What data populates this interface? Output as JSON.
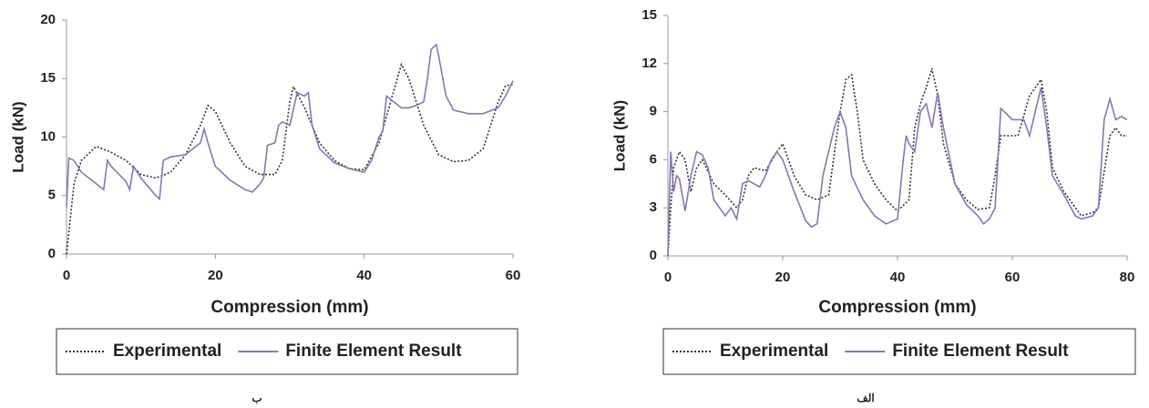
{
  "chart_data": [
    {
      "type": "line",
      "caption": "ب",
      "xlabel": "Compression (mm)",
      "ylabel": "Load (kN)",
      "xlim": [
        0,
        60
      ],
      "ylim": [
        0,
        20
      ],
      "xticks": [
        0,
        20,
        40,
        60
      ],
      "yticks": [
        0,
        5,
        10,
        15,
        20
      ],
      "series": [
        {
          "name": "Experimental",
          "color": "#333333",
          "dash": "dotted",
          "x": [
            0,
            1,
            2,
            4,
            6,
            8,
            10,
            12,
            14,
            16,
            18,
            19,
            20,
            22,
            24,
            26,
            28,
            29,
            30,
            30.5,
            32,
            34,
            36,
            38,
            40,
            42,
            44,
            45,
            46,
            48,
            50,
            52,
            54,
            56,
            58,
            59,
            60
          ],
          "values": [
            0,
            6,
            8,
            9.2,
            8.7,
            8,
            6.8,
            6.5,
            7,
            8.5,
            11,
            12.7,
            12.2,
            9.5,
            7.5,
            6.8,
            6.8,
            8,
            13,
            14.3,
            12.5,
            9.5,
            8,
            7.3,
            7.2,
            9.5,
            14,
            16.2,
            15,
            11,
            8.5,
            7.9,
            8,
            9,
            13,
            14.4,
            14.5
          ]
        },
        {
          "name": "Finite Element Result",
          "color": "#8a74b8",
          "dash": "solid",
          "x": [
            0,
            0.3,
            1,
            2,
            4,
            5,
            5.5,
            6,
            8,
            8.5,
            9,
            10,
            12,
            12.5,
            13,
            14,
            16,
            17,
            18,
            18.5,
            19,
            20,
            22,
            24,
            25,
            26,
            26.5,
            27,
            28,
            28.5,
            29,
            30,
            31,
            32,
            32.5,
            33,
            34,
            36,
            38,
            40,
            41,
            42,
            42.5,
            43,
            44,
            45,
            46,
            47,
            48,
            48.5,
            49,
            49.7,
            50,
            51,
            52,
            54,
            56,
            58,
            59,
            60
          ],
          "values": [
            4,
            8.2,
            8,
            7,
            6,
            5.5,
            8,
            7.5,
            6.2,
            5.5,
            7.5,
            6.5,
            5,
            4.7,
            8,
            8.3,
            8.5,
            9,
            9.5,
            10.7,
            9.5,
            7.5,
            6.3,
            5.5,
            5.3,
            6,
            6.5,
            9.3,
            9.5,
            11,
            11.3,
            11,
            13.8,
            13.5,
            13.8,
            11,
            9,
            7.8,
            7.3,
            7,
            8,
            10,
            10.5,
            13.5,
            13,
            12.5,
            12.5,
            12.7,
            13,
            15,
            17.5,
            17.9,
            17,
            13.5,
            12.3,
            12,
            12,
            12.5,
            13.5,
            14.8
          ]
        }
      ]
    },
    {
      "type": "line",
      "caption": "الف",
      "xlabel": "Compression (mm)",
      "ylabel": "Load (kN)",
      "xlim": [
        0,
        80
      ],
      "ylim": [
        0,
        15
      ],
      "xticks": [
        0,
        20,
        40,
        60,
        80
      ],
      "yticks": [
        0,
        3,
        6,
        9,
        12,
        15
      ],
      "series": [
        {
          "name": "Experimental",
          "color": "#333333",
          "dash": "dotted",
          "x": [
            0,
            0.5,
            1,
            2,
            3,
            4,
            5,
            6,
            8,
            10,
            12,
            13,
            14,
            15,
            17,
            19,
            20,
            22,
            24,
            26,
            28,
            30,
            31,
            32,
            33,
            34,
            36,
            38,
            40,
            42,
            43,
            44,
            45,
            46,
            47,
            48,
            50,
            52,
            54,
            56,
            57,
            58,
            60,
            61,
            63,
            65,
            66,
            67,
            69,
            71,
            72,
            74,
            75,
            77,
            78,
            79,
            80
          ],
          "values": [
            0,
            3,
            5.5,
            6.5,
            6,
            4,
            5.5,
            6,
            4.5,
            3.8,
            3,
            3.5,
            5,
            5.5,
            5.3,
            6.5,
            7,
            5,
            3.8,
            3.5,
            3.8,
            9,
            11,
            11.3,
            9,
            6,
            4.5,
            3.5,
            2.8,
            3.5,
            8,
            9.5,
            10.5,
            11.7,
            10,
            7,
            4.5,
            3.5,
            2.9,
            3,
            5,
            7.5,
            7.5,
            7.5,
            10,
            11,
            9,
            5.5,
            4,
            3,
            2.5,
            2.7,
            3,
            7.5,
            8,
            7.5,
            7.5
          ]
        },
        {
          "name": "Finite Element Result",
          "color": "#8a74b8",
          "dash": "solid",
          "x": [
            0,
            0.5,
            1,
            1.5,
            2,
            3,
            4,
            5,
            6,
            7,
            8,
            10,
            11,
            12,
            13,
            14,
            16,
            17,
            18,
            19,
            20,
            22,
            24,
            25,
            26,
            27,
            28,
            29,
            30,
            31,
            32,
            34,
            36,
            38,
            40,
            41,
            41.5,
            42,
            43,
            44,
            45,
            46,
            47,
            48,
            50,
            52,
            54,
            55,
            56,
            57,
            58,
            60,
            62,
            63,
            64,
            65,
            66,
            67,
            69,
            71,
            72,
            74,
            75,
            76,
            77,
            78,
            79,
            80
          ],
          "values": [
            0,
            6.5,
            4,
            5,
            4.8,
            2.8,
            5,
            6.5,
            6.3,
            5.5,
            3.5,
            2.5,
            3,
            2.3,
            4.5,
            4.7,
            4.3,
            5,
            6,
            6.5,
            6,
            4,
            2.2,
            1.8,
            2,
            5,
            6.5,
            8,
            9,
            8,
            5,
            3.5,
            2.5,
            2,
            2.3,
            6,
            7.5,
            7,
            6.5,
            9,
            9.5,
            8,
            10.2,
            8,
            4.5,
            3.2,
            2.5,
            2,
            2.3,
            3,
            9.2,
            8.5,
            8.5,
            7.5,
            9,
            10.5,
            8,
            5,
            3.8,
            2.5,
            2.3,
            2.5,
            3,
            8.5,
            9.8,
            8.5,
            8.7,
            8.5
          ]
        }
      ]
    }
  ]
}
